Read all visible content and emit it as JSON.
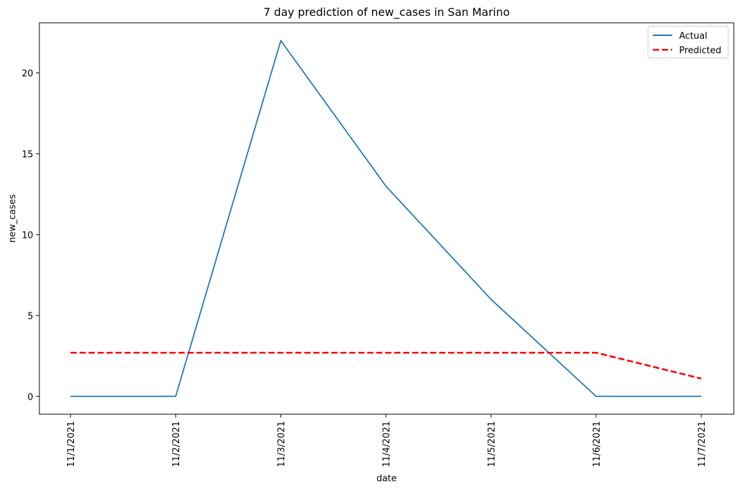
{
  "chart_data": {
    "type": "line",
    "title": "7 day prediction of new_cases in San Marino",
    "xlabel": "date",
    "ylabel": "new_cases",
    "categories": [
      "11/1/2021",
      "11/2/2021",
      "11/3/2021",
      "11/4/2021",
      "11/5/2021",
      "11/6/2021",
      "11/7/2021"
    ],
    "series": [
      {
        "name": "Actual",
        "values": [
          0,
          0,
          22,
          13,
          6,
          0,
          0
        ],
        "color": "#1f77b4",
        "style": "solid"
      },
      {
        "name": "Predicted",
        "values": [
          2.7,
          2.7,
          2.7,
          2.7,
          2.7,
          2.7,
          1.1
        ],
        "color": "#ff0000",
        "style": "dashed"
      }
    ],
    "yticks": [
      0,
      5,
      10,
      15,
      20
    ],
    "ylim": [
      -1.1,
      23.1
    ],
    "grid": false,
    "legend_position": "top-right"
  }
}
